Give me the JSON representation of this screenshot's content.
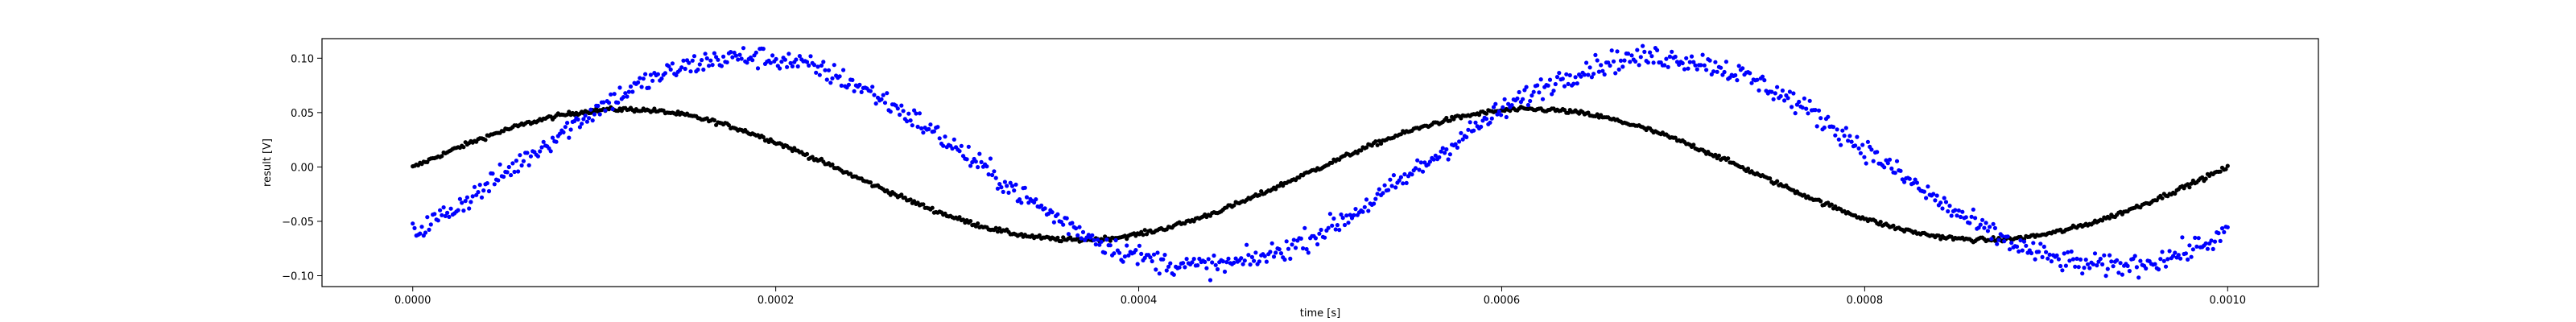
{
  "chart_data": {
    "type": "scatter",
    "title": "",
    "xlabel": "time [s]",
    "ylabel": "result [V]",
    "xlim": [
      -5e-05,
      0.00105
    ],
    "ylim": [
      -0.11,
      0.118
    ],
    "xticks": [
      "0.0000",
      "0.0002",
      "0.0004",
      "0.0006",
      "0.0008",
      "0.0010"
    ],
    "xtick_values": [
      0,
      0.0002,
      0.0004,
      0.0006,
      0.0008,
      0.001
    ],
    "yticks": [
      "0.10",
      "0.05",
      "0.00",
      "−0.05",
      "−0.10"
    ],
    "ytick_values": [
      0.1,
      0.05,
      0,
      -0.05,
      -0.1
    ],
    "grid": false,
    "legend": "none",
    "series": [
      {
        "color": "#000000",
        "marker": "dot",
        "x_start": 0,
        "x_end": 0.001,
        "n_points": 1000,
        "model": "offset + amplitude * sin(2*pi*frequency*t + phase)",
        "amplitude": 0.06,
        "offset": -0.007,
        "frequency": 2000,
        "phase": 0.11,
        "noise": 0.002
      },
      {
        "color": "#0000ff",
        "marker": "dot",
        "x_start": 0,
        "x_end": 0.001,
        "n_points": 1000,
        "model": "offset + amplitude * sin(2*pi*frequency*t + phase)",
        "amplitude": 0.096,
        "offset": 0.005,
        "frequency": 2000,
        "phase": -0.75,
        "noise": 0.01
      }
    ]
  }
}
